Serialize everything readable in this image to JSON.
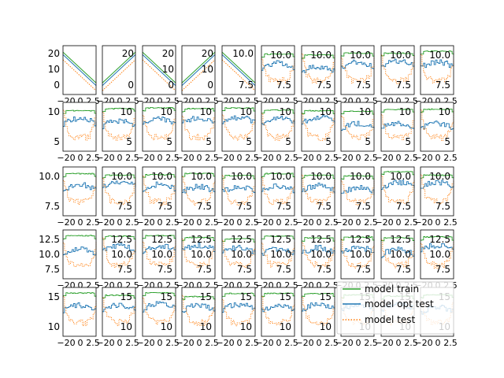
{
  "figure": {
    "background": "#ffffff",
    "frame_color": "#000000",
    "colors": {
      "model_train": "#2ca02c",
      "model_opt_test": "#1f77b4",
      "model_test": "#ff7f0e"
    }
  },
  "legend": {
    "placement": "lower-right",
    "entries": [
      "model train",
      "model opt test",
      "model test"
    ]
  },
  "chart_data": {
    "type": "line",
    "layout": "grid of small multiples, 5 rows x 10 columns",
    "rows": 5,
    "cols": 10,
    "series": [
      {
        "name": "model train",
        "color": "#2ca02c",
        "style": "solid"
      },
      {
        "name": "model opt test",
        "color": "#1f77b4",
        "style": "solid"
      },
      {
        "name": "model test",
        "color": "#ff7f0e",
        "style": "dotted"
      }
    ],
    "first_row_linear_panels": {
      "ylim": [
        -12,
        26
      ],
      "slopes": [
        -1,
        1,
        -1,
        1,
        -1
      ],
      "yticks": [
        [
          "20",
          "10",
          "0"
        ],
        [
          "20",
          "0"
        ],
        [
          "20",
          "10",
          "0"
        ],
        [
          "20",
          "10",
          "0"
        ],
        [
          "10.0",
          "7.5"
        ]
      ]
    },
    "panel_yticks": {
      "row1": [
        "10.0",
        "7.5"
      ],
      "row2": [
        "10",
        "5"
      ],
      "row3": [
        "10.0",
        "7.5"
      ],
      "row4": [
        "12.5",
        "10.0",
        "7.5"
      ],
      "row5": [
        "15",
        "10"
      ]
    },
    "xtick_labels": [
      "−20",
      "0",
      "2.5"
    ],
    "x_range": [
      -3,
      3
    ]
  }
}
